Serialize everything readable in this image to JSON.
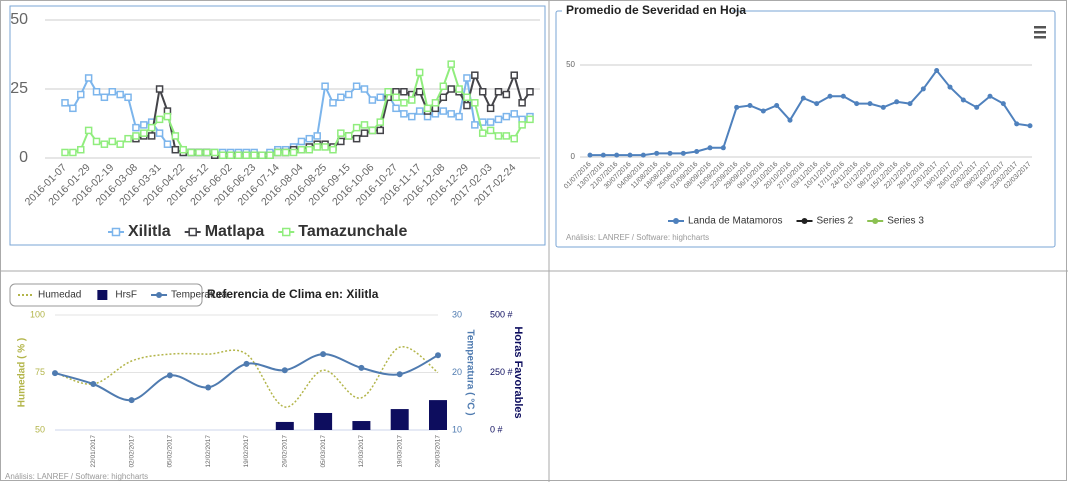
{
  "chart_data": [
    {
      "type": "line",
      "categories": [
        "2016-01-07",
        null,
        null,
        "2016-01-29",
        null,
        null,
        "2016-02-19",
        null,
        null,
        "2016-03-08",
        null,
        null,
        "2016-03-31",
        null,
        null,
        "2016-04-22",
        null,
        null,
        "2016-05-12",
        null,
        null,
        "2016-06-02",
        null,
        null,
        "2016-06-23",
        null,
        null,
        "2016-07-14",
        null,
        null,
        "2016-08-04",
        null,
        null,
        "2016-08-25",
        null,
        null,
        "2016-09-15",
        null,
        null,
        "2016-10-06",
        null,
        null,
        "2016-10-27",
        null,
        null,
        "2016-11-17",
        null,
        null,
        "2016-12-08",
        null,
        null,
        "2016-12-29",
        null,
        null,
        "2017-02-03",
        null,
        null,
        "2017-02-24",
        null,
        null
      ],
      "series": [
        {
          "name": "Xilitla",
          "color": "#7cb5ec",
          "values": [
            20,
            18,
            23,
            29,
            24,
            22,
            24,
            23,
            22,
            11,
            12,
            13,
            9,
            5,
            3,
            2,
            2,
            2,
            2,
            2,
            2,
            2,
            2,
            2,
            2,
            1,
            2,
            3,
            3,
            4,
            6,
            7,
            8,
            26,
            20,
            22,
            23,
            26,
            25,
            21,
            22,
            23,
            18,
            16,
            15,
            17,
            15,
            16,
            17,
            16,
            15,
            29,
            12,
            13,
            13,
            14,
            15,
            16,
            14,
            15
          ]
        },
        {
          "name": "Matlapa",
          "color": "#434348",
          "values": [
            null,
            null,
            null,
            null,
            null,
            null,
            null,
            null,
            null,
            7,
            8,
            8,
            25,
            17,
            3,
            2,
            2,
            2,
            2,
            1,
            1,
            1,
            1,
            1,
            1,
            1,
            1,
            2,
            2,
            3,
            3,
            4,
            5,
            5,
            4,
            6,
            8,
            7,
            9,
            10,
            10,
            22,
            24,
            24,
            23,
            24,
            17,
            18,
            22,
            25,
            24,
            19,
            30,
            24,
            18,
            24,
            23,
            30,
            20,
            24
          ]
        },
        {
          "name": "Tamazunchale",
          "color": "#90ed7d",
          "values": [
            2,
            2,
            3,
            10,
            6,
            5,
            6,
            5,
            7,
            8,
            9,
            11,
            14,
            15,
            8,
            3,
            2,
            2,
            2,
            2,
            1,
            1,
            1,
            1,
            1,
            1,
            1,
            2,
            2,
            2,
            3,
            3,
            4,
            4,
            3,
            9,
            8,
            11,
            12,
            10,
            13,
            24,
            22,
            20,
            21,
            31,
            18,
            20,
            26,
            34,
            25,
            22,
            20,
            9,
            10,
            8,
            8,
            7,
            12,
            14
          ]
        }
      ],
      "ylim": [
        0,
        50
      ],
      "yticks": [
        0,
        25,
        50
      ],
      "grid": true
    },
    {
      "type": "line",
      "title": "Promedio de Severidad en Hoja",
      "categories": [
        "01/07/2016",
        "13/07/2016",
        "21/07/2016",
        "30/07/2016",
        "04/08/2016",
        "11/08/2016",
        "18/08/2016",
        "25/08/2016",
        "01/09/2016",
        "08/09/2016",
        "15/09/2016",
        "22/09/2016",
        "29/09/2016",
        "06/10/2016",
        "13/10/2016",
        "20/10/2016",
        "27/10/2016",
        "03/11/2016",
        "10/11/2016",
        "17/11/2016",
        "24/11/2016",
        "01/12/2016",
        "08/12/2016",
        "15/12/2016",
        "22/12/2016",
        "28/12/2016",
        "12/01/2017",
        "19/01/2017",
        "26/01/2017",
        "02/02/2017",
        "09/02/2017",
        "16/02/2017",
        "23/02/2017",
        "02/03/2017"
      ],
      "series": [
        {
          "name": "Landa de Matamoros",
          "color": "#4f81bd",
          "values": [
            1,
            1,
            1,
            1,
            1,
            2,
            2,
            2,
            3,
            5,
            5,
            27,
            28,
            25,
            28,
            20,
            32,
            29,
            33,
            33,
            29,
            29,
            27,
            30,
            29,
            37,
            47,
            38,
            31,
            27,
            33,
            29,
            18,
            17
          ]
        },
        {
          "name": "Series 2",
          "color": "#222222",
          "values": [
            null,
            null,
            null,
            null,
            null,
            null,
            null,
            null,
            null,
            null,
            null,
            null,
            null,
            null,
            null,
            null,
            null,
            null,
            null,
            null,
            null,
            null,
            null,
            null,
            null,
            null,
            null,
            null,
            null,
            null,
            null,
            null,
            null,
            null
          ]
        },
        {
          "name": "Series 3",
          "color": "#8cc152",
          "values": [
            null,
            null,
            null,
            null,
            null,
            null,
            null,
            null,
            null,
            null,
            null,
            null,
            null,
            null,
            null,
            null,
            null,
            null,
            null,
            null,
            null,
            null,
            null,
            null,
            null,
            null,
            null,
            null,
            null,
            null,
            null,
            null,
            null,
            null
          ]
        }
      ],
      "ylim": [
        0,
        50
      ],
      "yticks": [
        0,
        50
      ],
      "grid": true,
      "credits": "Análisis: LANREF / Software: highcharts"
    },
    {
      "type": "combination",
      "title": "Referencia de Clima en: Xilitla",
      "categories": [
        null,
        "22/01/2017",
        "02/02/2017",
        "05/02/2017",
        "12/02/2017",
        "19/02/2017",
        "26/02/2017",
        "05/03/2017",
        "12/03/2017",
        "19/03/2017",
        "26/03/2017"
      ],
      "series": [
        {
          "name": "Humedad",
          "type": "spline",
          "axis": "y",
          "line_style": "dotted",
          "color": "#b3b54a",
          "values": [
            75,
            70,
            80,
            83,
            83,
            83,
            60,
            76,
            64,
            86,
            75
          ]
        },
        {
          "name": "HrsF",
          "type": "column",
          "axis": "y3",
          "color": "#0d0d5e",
          "values": [
            0,
            0,
            0,
            0,
            0,
            0,
            35,
            74,
            39,
            91,
            130
          ]
        },
        {
          "name": "Temperatura",
          "type": "spline",
          "axis": "y2",
          "line_style": "solid",
          "color": "#4f7bb0",
          "values": [
            19.9,
            18,
            15.2,
            19.5,
            17.4,
            21.5,
            20.4,
            23.2,
            20.8,
            19.7,
            23
          ]
        }
      ],
      "ylabel": "Humedad ( % )",
      "ylim": [
        50,
        100
      ],
      "yticks": [
        50,
        75,
        100
      ],
      "y2label": "Temperatura ( °C )",
      "y2lim": [
        10,
        30
      ],
      "y2ticks": [
        10,
        20,
        30
      ],
      "y3label": "Horas Favorables",
      "y3lim": [
        0,
        500
      ],
      "y3ticks": [
        {
          "value": 0,
          "label": "0 #"
        },
        {
          "value": 250,
          "label": "250 #"
        },
        {
          "value": 500,
          "label": "500 #"
        }
      ],
      "grid": true,
      "credits": "Análisis: LANREF / Software: highcharts"
    }
  ]
}
